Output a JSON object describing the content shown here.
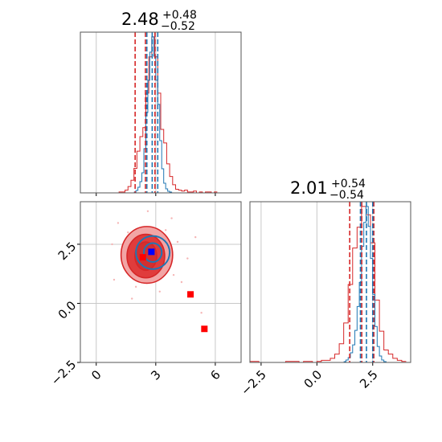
{
  "colors": {
    "red": "#d62728",
    "blue": "#1f77b4",
    "red_fill_dark": "#e03c3c",
    "red_fill_light": "#f2a5a5",
    "blue_marker": "#0000ff",
    "red_marker": "#ff0000",
    "grid": "#c8c8c8"
  },
  "chart_data": [
    {
      "type": "histogram",
      "panel": "marginal-x",
      "title": {
        "value": "2.48",
        "upper": "+0.48",
        "lower": "−0.52"
      },
      "xlim": [
        -0.8,
        7.3
      ],
      "grid": true,
      "quantiles_red": [
        1.96,
        2.48,
        2.96
      ],
      "quantiles_blue": [
        2.55,
        2.82,
        3.1
      ],
      "red_hist": {
        "bins": [
          1.0,
          1.15,
          1.3,
          1.45,
          1.6,
          1.75,
          1.9,
          2.05,
          2.2,
          2.35,
          2.5,
          2.65,
          2.8,
          2.95,
          3.1,
          3.25,
          3.4,
          3.55,
          3.7,
          3.85,
          4.0,
          4.15,
          4.3,
          4.45,
          4.6,
          4.75,
          4.9,
          5.05,
          5.2,
          5.35,
          5.5,
          5.65,
          5.8,
          5.95
        ],
        "counts": [
          0,
          1,
          1,
          3,
          7,
          14,
          27,
          46,
          62,
          72,
          110,
          150,
          172,
          150,
          110,
          70,
          55,
          32,
          18,
          9,
          4,
          3,
          2,
          3,
          1,
          1,
          2,
          0,
          1,
          0,
          1,
          1,
          0,
          1
        ]
      },
      "blue_hist": {
        "bins": [
          1.9,
          2.0,
          2.1,
          2.2,
          2.3,
          2.4,
          2.5,
          2.6,
          2.7,
          2.8,
          2.9,
          3.0,
          3.1,
          3.2,
          3.3,
          3.4,
          3.5,
          3.6,
          3.7,
          3.8
        ],
        "counts": [
          1,
          3,
          7,
          14,
          25,
          55,
          100,
          140,
          175,
          194,
          170,
          140,
          110,
          65,
          30,
          12,
          5,
          2,
          1,
          0
        ]
      }
    },
    {
      "type": "contour",
      "panel": "joint",
      "xlim": [
        -0.8,
        7.3
      ],
      "ylim": [
        -2.5,
        4.3
      ],
      "x_ticks": [
        0,
        3,
        6
      ],
      "x_tick_labels": [
        "0",
        "3",
        "6"
      ],
      "y_ticks": [
        -2.5,
        0.0,
        2.5
      ],
      "y_tick_labels": [
        "−2.5",
        "0.0",
        "2.5"
      ],
      "grid": true,
      "red_contours": [
        {
          "cx": 2.55,
          "cy": 2.05,
          "rx": 1.3,
          "ry": 1.2,
          "level": "outer"
        },
        {
          "cx": 2.5,
          "cy": 2.0,
          "rx": 0.95,
          "ry": 0.92,
          "level": "middle"
        },
        {
          "cx": 2.5,
          "cy": 2.0,
          "rx": 0.55,
          "ry": 0.6,
          "level": "inner"
        }
      ],
      "blue_contours": [
        {
          "cx": 2.85,
          "cy": 2.15,
          "rx": 0.85,
          "ry": 0.7,
          "level": "outer"
        },
        {
          "cx": 2.85,
          "cy": 2.15,
          "rx": 0.45,
          "ry": 0.4,
          "level": "inner"
        }
      ],
      "markers_red": [
        {
          "x": 2.35,
          "y": 1.95
        },
        {
          "x": 4.75,
          "y": 0.38
        },
        {
          "x": 5.45,
          "y": -1.08
        }
      ],
      "markers_blue": [
        {
          "x": 2.78,
          "y": 2.18
        }
      ],
      "scatter_points": [
        {
          "x": 1.6,
          "y": 3.0
        },
        {
          "x": 3.5,
          "y": 3.1
        },
        {
          "x": 1.4,
          "y": 1.5
        },
        {
          "x": 3.9,
          "y": 1.2
        },
        {
          "x": 0.8,
          "y": 2.5
        },
        {
          "x": 4.1,
          "y": 2.6
        },
        {
          "x": 2.0,
          "y": 0.7
        },
        {
          "x": 3.2,
          "y": 0.5
        },
        {
          "x": 1.1,
          "y": 3.4
        },
        {
          "x": 3.8,
          "y": 3.6
        },
        {
          "x": 4.6,
          "y": 1.9
        },
        {
          "x": 0.9,
          "y": 1.0
        },
        {
          "x": 2.6,
          "y": 3.9
        },
        {
          "x": 5.0,
          "y": 2.8
        },
        {
          "x": 1.8,
          "y": 0.2
        },
        {
          "x": 4.3,
          "y": 0.9
        },
        {
          "x": 5.3,
          "y": -0.4
        },
        {
          "x": 2.9,
          "y": 0.9
        },
        {
          "x": 1.3,
          "y": 2.0
        },
        {
          "x": 3.6,
          "y": 1.6
        }
      ]
    },
    {
      "type": "histogram",
      "panel": "marginal-y",
      "title": {
        "value": "2.01",
        "upper": "+0.54",
        "lower": "−0.54"
      },
      "xlim": [
        -3.0,
        4.2
      ],
      "x_ticks": [
        -2.5,
        0.0,
        2.5
      ],
      "x_tick_labels": [
        "−2.5",
        "0.0",
        "2.5"
      ],
      "grid": true,
      "quantiles_red": [
        1.47,
        2.01,
        2.55
      ],
      "quantiles_blue": [
        1.95,
        2.22,
        2.5
      ],
      "red_hist": {
        "bins": [
          -3.0,
          -2.8,
          -2.6,
          -2.4,
          -2.2,
          -2.0,
          -1.8,
          -1.6,
          -1.4,
          -1.2,
          -1.0,
          -0.8,
          -0.6,
          -0.4,
          -0.2,
          0.0,
          0.2,
          0.4,
          0.6,
          0.8,
          1.0,
          1.2,
          1.4,
          1.6,
          1.8,
          2.0,
          2.2,
          2.4,
          2.6,
          2.8,
          3.0,
          3.2,
          3.4,
          3.6,
          3.8,
          4.0
        ],
        "counts": [
          1,
          1,
          0,
          0,
          0,
          0,
          0,
          0,
          1,
          1,
          1,
          0,
          1,
          1,
          0,
          1,
          2,
          2,
          4,
          8,
          18,
          38,
          75,
          110,
          130,
          150,
          142,
          115,
          60,
          30,
          12,
          8,
          4,
          2,
          1
        ]
      },
      "blue_hist": {
        "bins": [
          1.2,
          1.3,
          1.4,
          1.5,
          1.6,
          1.7,
          1.8,
          1.9,
          2.0,
          2.1,
          2.2,
          2.3,
          2.4,
          2.5,
          2.6,
          2.7,
          2.8,
          2.9,
          3.0,
          3.1,
          3.2
        ],
        "counts": [
          1,
          3,
          6,
          12,
          22,
          40,
          70,
          100,
          145,
          175,
          195,
          170,
          130,
          85,
          45,
          20,
          8,
          3,
          1,
          0
        ]
      }
    }
  ]
}
